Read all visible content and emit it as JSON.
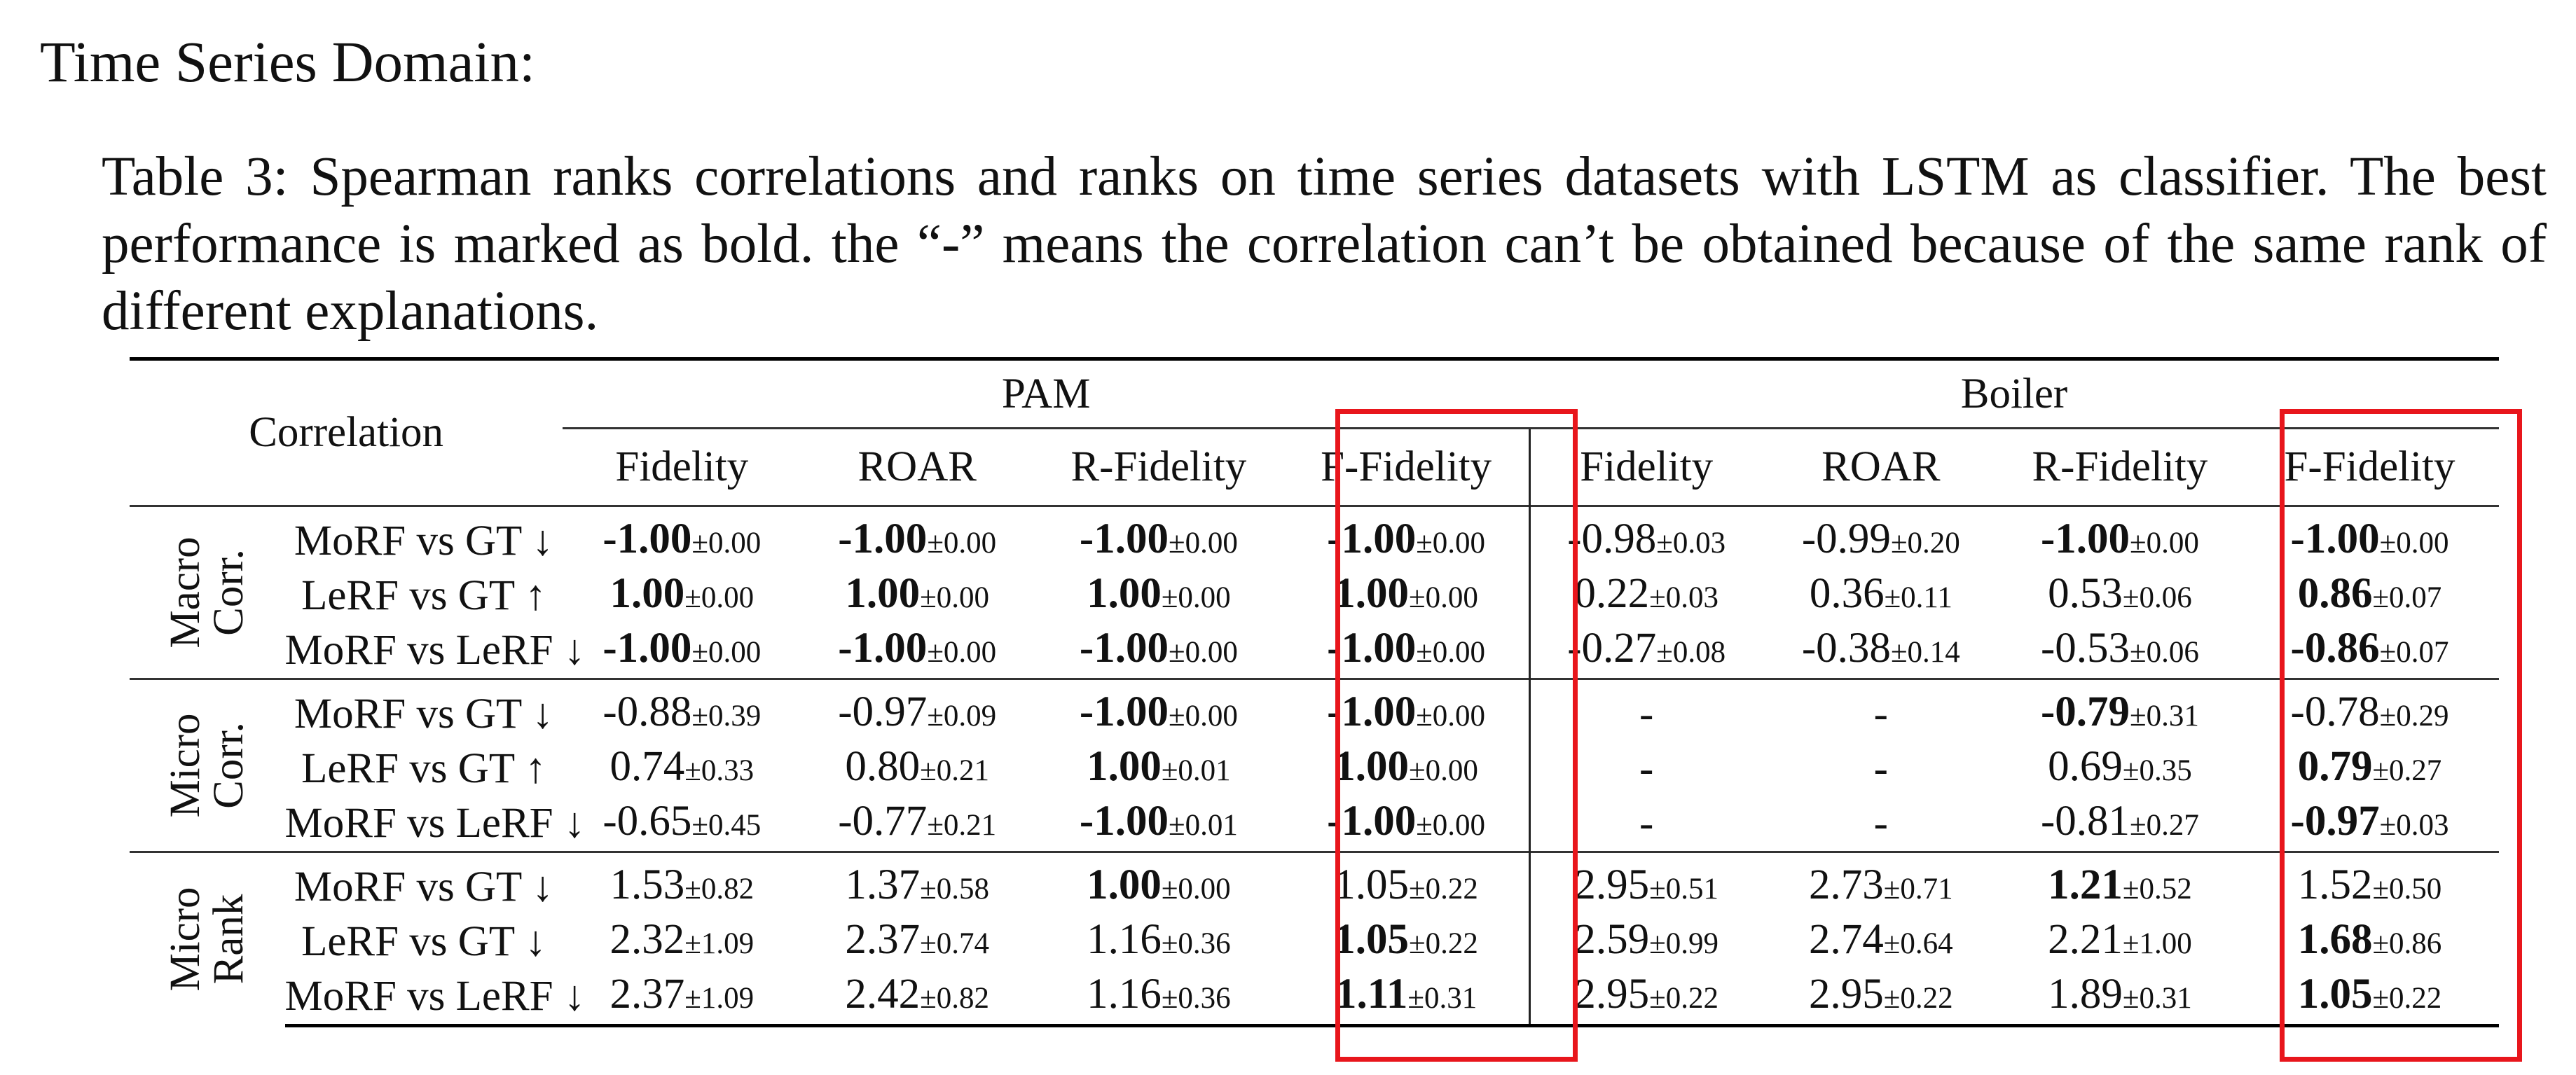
{
  "heading": "Time Series Domain:",
  "caption": "Table 3: Spearman ranks correlations and ranks on time series datasets with LSTM as classifier. The best performance is marked as bold. the “-” means the correlation can’t be obtained because of the same rank of different explanations.",
  "table": {
    "corr_header": "Correlation",
    "datasets": [
      "PAM",
      "Boiler"
    ],
    "metrics": [
      "Fidelity",
      "ROAR",
      "R-Fidelity",
      "F-Fidelity",
      "Fidelity",
      "ROAR",
      "R-Fidelity",
      "F-Fidelity"
    ],
    "groups": [
      {
        "label": [
          "Macro",
          "Corr."
        ],
        "rows": [
          {
            "name": "MoRF vs GT ↓",
            "cells": [
              {
                "m": "-1.00",
                "s": "±0.00",
                "bold": true
              },
              {
                "m": "-1.00",
                "s": "±0.00",
                "bold": true
              },
              {
                "m": "-1.00",
                "s": "±0.00",
                "bold": true
              },
              {
                "m": "-1.00",
                "s": "±0.00",
                "bold": true
              },
              {
                "m": "-0.98",
                "s": "±0.03",
                "bold": false
              },
              {
                "m": "-0.99",
                "s": "±0.20",
                "bold": false
              },
              {
                "m": "-1.00",
                "s": "±0.00",
                "bold": true
              },
              {
                "m": "-1.00",
                "s": "±0.00",
                "bold": true
              }
            ]
          },
          {
            "name": "LeRF vs GT ↑",
            "cells": [
              {
                "m": "1.00",
                "s": "±0.00",
                "bold": true
              },
              {
                "m": "1.00",
                "s": "±0.00",
                "bold": true
              },
              {
                "m": "1.00",
                "s": "±0.00",
                "bold": true
              },
              {
                "m": "1.00",
                "s": "±0.00",
                "bold": true
              },
              {
                "m": "0.22",
                "s": "±0.03",
                "bold": false
              },
              {
                "m": "0.36",
                "s": "±0.11",
                "bold": false
              },
              {
                "m": "0.53",
                "s": "±0.06",
                "bold": false
              },
              {
                "m": "0.86",
                "s": "±0.07",
                "bold": true
              }
            ]
          },
          {
            "name": "MoRF vs LeRF ↓",
            "cells": [
              {
                "m": "-1.00",
                "s": "±0.00",
                "bold": true
              },
              {
                "m": "-1.00",
                "s": "±0.00",
                "bold": true
              },
              {
                "m": "-1.00",
                "s": "±0.00",
                "bold": true
              },
              {
                "m": "-1.00",
                "s": "±0.00",
                "bold": true
              },
              {
                "m": "-0.27",
                "s": "±0.08",
                "bold": false
              },
              {
                "m": "-0.38",
                "s": "±0.14",
                "bold": false
              },
              {
                "m": "-0.53",
                "s": "±0.06",
                "bold": false
              },
              {
                "m": "-0.86",
                "s": "±0.07",
                "bold": true
              }
            ]
          }
        ]
      },
      {
        "label": [
          "Micro",
          "Corr."
        ],
        "rows": [
          {
            "name": "MoRF vs GT ↓",
            "cells": [
              {
                "m": "-0.88",
                "s": "±0.39",
                "bold": false
              },
              {
                "m": "-0.97",
                "s": "±0.09",
                "bold": false
              },
              {
                "m": "-1.00",
                "s": "±0.00",
                "bold": true
              },
              {
                "m": "-1.00",
                "s": "±0.00",
                "bold": true
              },
              {
                "m": "-",
                "s": "",
                "bold": false
              },
              {
                "m": "-",
                "s": "",
                "bold": false
              },
              {
                "m": "-0.79",
                "s": "±0.31",
                "bold": true
              },
              {
                "m": "-0.78",
                "s": "±0.29",
                "bold": false
              }
            ]
          },
          {
            "name": "LeRF vs GT ↑",
            "cells": [
              {
                "m": "0.74",
                "s": "±0.33",
                "bold": false
              },
              {
                "m": "0.80",
                "s": "±0.21",
                "bold": false
              },
              {
                "m": "1.00",
                "s": "±0.01",
                "bold": true
              },
              {
                "m": "1.00",
                "s": "±0.00",
                "bold": true
              },
              {
                "m": "-",
                "s": "",
                "bold": false
              },
              {
                "m": "-",
                "s": "",
                "bold": false
              },
              {
                "m": "0.69",
                "s": "±0.35",
                "bold": false
              },
              {
                "m": "0.79",
                "s": "±0.27",
                "bold": true
              }
            ]
          },
          {
            "name": "MoRF vs LeRF ↓",
            "cells": [
              {
                "m": "-0.65",
                "s": "±0.45",
                "bold": false
              },
              {
                "m": "-0.77",
                "s": "±0.21",
                "bold": false
              },
              {
                "m": "-1.00",
                "s": "±0.01",
                "bold": true
              },
              {
                "m": "-1.00",
                "s": "±0.00",
                "bold": true
              },
              {
                "m": "-",
                "s": "",
                "bold": false
              },
              {
                "m": "-",
                "s": "",
                "bold": false
              },
              {
                "m": "-0.81",
                "s": "±0.27",
                "bold": false
              },
              {
                "m": "-0.97",
                "s": "±0.03",
                "bold": true
              }
            ]
          }
        ]
      },
      {
        "label": [
          "Micro",
          "Rank"
        ],
        "rows": [
          {
            "name": "MoRF vs GT ↓",
            "cells": [
              {
                "m": "1.53",
                "s": "±0.82",
                "bold": false
              },
              {
                "m": "1.37",
                "s": "±0.58",
                "bold": false
              },
              {
                "m": "1.00",
                "s": "±0.00",
                "bold": true
              },
              {
                "m": "1.05",
                "s": "±0.22",
                "bold": false
              },
              {
                "m": "2.95",
                "s": "±0.51",
                "bold": false
              },
              {
                "m": "2.73",
                "s": "±0.71",
                "bold": false
              },
              {
                "m": "1.21",
                "s": "±0.52",
                "bold": true
              },
              {
                "m": "1.52",
                "s": "±0.50",
                "bold": false
              }
            ]
          },
          {
            "name": "LeRF vs GT ↓",
            "cells": [
              {
                "m": "2.32",
                "s": "±1.09",
                "bold": false
              },
              {
                "m": "2.37",
                "s": "±0.74",
                "bold": false
              },
              {
                "m": "1.16",
                "s": "±0.36",
                "bold": false
              },
              {
                "m": "1.05",
                "s": "±0.22",
                "bold": true
              },
              {
                "m": "2.59",
                "s": "±0.99",
                "bold": false
              },
              {
                "m": "2.74",
                "s": "±0.64",
                "bold": false
              },
              {
                "m": "2.21",
                "s": "±1.00",
                "bold": false
              },
              {
                "m": "1.68",
                "s": "±0.86",
                "bold": true
              }
            ]
          },
          {
            "name": "MoRF vs LeRF ↓",
            "cells": [
              {
                "m": "2.37",
                "s": "±1.09",
                "bold": false
              },
              {
                "m": "2.42",
                "s": "±0.82",
                "bold": false
              },
              {
                "m": "1.16",
                "s": "±0.36",
                "bold": false
              },
              {
                "m": "1.11",
                "s": "±0.31",
                "bold": true
              },
              {
                "m": "2.95",
                "s": "±0.22",
                "bold": false
              },
              {
                "m": "2.95",
                "s": "±0.22",
                "bold": false
              },
              {
                "m": "1.89",
                "s": "±0.31",
                "bold": false
              },
              {
                "m": "1.05",
                "s": "±0.22",
                "bold": true
              }
            ]
          }
        ]
      }
    ]
  },
  "highlight_color": "#e8161c"
}
